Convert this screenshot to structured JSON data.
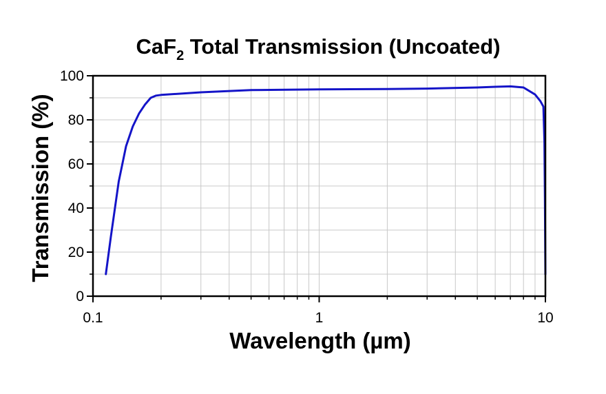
{
  "chart_data": {
    "type": "line",
    "title": {
      "prefix": "CaF",
      "subscript": "2",
      "suffix": " Total Transmission (Uncoated)"
    },
    "xlabel": "Wavelength (µm)",
    "ylabel": "Transmission (%)",
    "xscale": "log",
    "xlim": [
      0.1,
      10
    ],
    "ylim": [
      0,
      100
    ],
    "x_ticks": [
      0.1,
      1,
      10
    ],
    "x_tick_labels": [
      "0.1",
      "1",
      "10"
    ],
    "y_ticks": [
      0,
      20,
      40,
      60,
      80,
      100
    ],
    "y_tick_labels": [
      "0",
      "20",
      "40",
      "60",
      "80",
      "100"
    ],
    "grid": true,
    "line_color": "#1414c8",
    "grid_color": "#c8c8c8",
    "series": [
      {
        "x": [
          0.114,
          0.12,
          0.13,
          0.14,
          0.15,
          0.16,
          0.17,
          0.18,
          0.19,
          0.2,
          0.3,
          0.5,
          1,
          2,
          3,
          5,
          6,
          7,
          8,
          9,
          9.5,
          9.8,
          9.9,
          9.95,
          10
        ],
        "y": [
          10,
          27,
          52,
          68,
          77,
          83,
          87,
          90,
          91,
          91.3,
          92.5,
          93.5,
          93.8,
          94,
          94.2,
          94.7,
          95,
          95.2,
          94.7,
          91.5,
          88.5,
          86,
          70,
          45,
          10
        ]
      }
    ]
  }
}
